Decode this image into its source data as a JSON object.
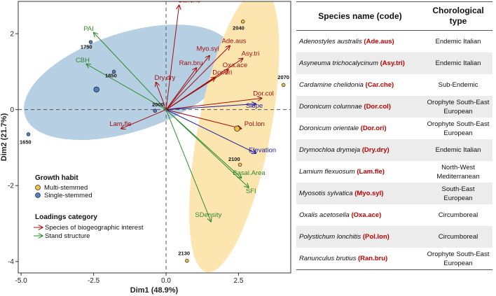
{
  "chart_data": {
    "type": "scatter",
    "xlabel": "Dim1 (48.9%)",
    "ylabel": "Dim2 (21.7%)",
    "xlim": [
      -5.1,
      4.3
    ],
    "ylim": [
      -4.3,
      2.85
    ],
    "xticks": [
      -5.0,
      -2.5,
      0.0,
      2.5
    ],
    "yticks": [
      -4,
      -2,
      0,
      2
    ],
    "points": [
      {
        "label": "1750",
        "x": -2.6,
        "y": 1.78,
        "habit": "single",
        "label_dx": -0.15,
        "label_dy": -0.17
      },
      {
        "label": "1850",
        "x": -1.8,
        "y": 1.0,
        "habit": "single",
        "label_dx": -0.1,
        "label_dy": -0.15
      },
      {
        "label": "1650",
        "x": -4.75,
        "y": -0.65,
        "habit": "single",
        "label_dx": -0.1,
        "label_dy": -0.25
      },
      {
        "label": "2000",
        "x": -0.38,
        "y": -0.03,
        "habit": "single",
        "label_dx": 0.1,
        "label_dy": 0.12
      },
      {
        "label": "2040",
        "x": 2.65,
        "y": 2.32,
        "habit": "multi",
        "label_dx": -0.15,
        "label_dy": -0.22
      },
      {
        "label": "2070",
        "x": 4.05,
        "y": 0.65,
        "habit": "multi",
        "label_dx": 0.0,
        "label_dy": 0.15
      },
      {
        "label": "2100",
        "x": 2.55,
        "y": -1.45,
        "habit": "multi",
        "label_dx": -0.2,
        "label_dy": 0.1
      },
      {
        "label": "2130",
        "x": 0.72,
        "y": -3.98,
        "habit": "multi",
        "label_dx": -0.1,
        "label_dy": 0.15
      }
    ],
    "centroids": [
      {
        "habit": "single",
        "x": -2.4,
        "y": 0.53
      },
      {
        "habit": "multi",
        "x": 2.45,
        "y": -0.5
      }
    ],
    "loadings": [
      {
        "label": "Car.che",
        "x": 0.45,
        "y": 2.75,
        "category": "species",
        "lx": 0.4,
        "ly": 2.82
      },
      {
        "label": "Myo.syl",
        "x": 1.5,
        "y": 1.42,
        "category": "species",
        "lx": 1.05,
        "ly": 1.55
      },
      {
        "label": "Ade.aus",
        "x": 2.2,
        "y": 1.68,
        "category": "species",
        "lx": 1.92,
        "ly": 1.75
      },
      {
        "label": "Asy.tri",
        "x": 2.65,
        "y": 1.35,
        "category": "species",
        "lx": 2.6,
        "ly": 1.42
      },
      {
        "label": "Ran.bru",
        "x": 1.05,
        "y": 1.1,
        "category": "species",
        "lx": 0.45,
        "ly": 1.17
      },
      {
        "label": "Oxa.ace",
        "x": 2.15,
        "y": 1.05,
        "category": "species",
        "lx": 1.95,
        "ly": 1.12
      },
      {
        "label": "Dor.ori",
        "x": 1.7,
        "y": 0.85,
        "category": "species",
        "lx": 1.6,
        "ly": 0.92
      },
      {
        "label": "Dry.dry",
        "x": -0.35,
        "y": 0.72,
        "category": "species",
        "lx": -0.4,
        "ly": 0.79
      },
      {
        "label": "Dor.col",
        "x": 3.3,
        "y": 0.3,
        "category": "species",
        "lx": 3.0,
        "ly": 0.37
      },
      {
        "label": "Pol.lon",
        "x": 2.6,
        "y": -0.5,
        "category": "species",
        "lx": 2.7,
        "ly": -0.43
      },
      {
        "label": "Lam.fle",
        "x": -1.55,
        "y": -0.5,
        "category": "species",
        "lx": -1.95,
        "ly": -0.43
      },
      {
        "label": "PAI",
        "x": -2.5,
        "y": 2.03,
        "category": "stand",
        "lx": -2.85,
        "ly": 2.08
      },
      {
        "label": "CBH",
        "x": -2.75,
        "y": 1.2,
        "category": "stand",
        "lx": -3.12,
        "ly": 1.25
      },
      {
        "label": "Slope",
        "x": 3.1,
        "y": 0.15,
        "category": "stand",
        "lx": 2.75,
        "ly": 0.05
      },
      {
        "label": "Elevation",
        "x": 3.1,
        "y": -1.15,
        "category": "stand",
        "lx": 2.85,
        "ly": -1.12
      },
      {
        "label": "Basal.Area",
        "x": 2.6,
        "y": -1.8,
        "category": "stand",
        "lx": 2.3,
        "ly": -1.72
      },
      {
        "label": "SFI",
        "x": 2.85,
        "y": -2.05,
        "category": "stand",
        "lx": 2.75,
        "ly": -2.2
      },
      {
        "label": "SDensity",
        "x": 1.55,
        "y": -2.95,
        "category": "stand",
        "lx": 1.0,
        "ly": -2.83
      }
    ],
    "legend": {
      "habit_title": "Growth habit",
      "habit_multi": "Multi-stemmed",
      "habit_single": "Single-stemmed",
      "loadings_title": "Loadings category",
      "loadings_species": "Species of biogeographic interest",
      "loadings_stand": "Stand structure",
      "placement": "bottom-left"
    },
    "colors": {
      "species_arrow": "#a01010",
      "stand_arrow": "#2e8b2e",
      "blue_arrow": "#1a1aa0",
      "single_ellipse": "#b7cfe3",
      "multi_ellipse": "#fde5b0",
      "single_point": "#4f81bd",
      "multi_point": "#f2c23c"
    }
  },
  "table": {
    "header_species": "Species name (code)",
    "header_type": "Chorological type",
    "rows": [
      {
        "name": "Adenostyles australis",
        "code": "(Ade.aus)",
        "type": "Endemic Italian"
      },
      {
        "name": "Asyneuma trichocalycinum",
        "code": "(Asy.tri)",
        "type": "Endemic Italian"
      },
      {
        "name": "Cardamine chelidonia",
        "code": "(Car.che)",
        "type": "Sub-Endemic"
      },
      {
        "name": "Doronicum columnae",
        "code": "(Dor.col)",
        "type": "Orophyte South-East European"
      },
      {
        "name": "Doronicum orientale",
        "code": "(Dor.ori)",
        "type": "Orophyte South-East European"
      },
      {
        "name": "Drymochloa drymeja",
        "code": "(Dry.dry)",
        "type": "Endemic Italian"
      },
      {
        "name": "Lamium flexuosum",
        "code": "(Lam.fle)",
        "type": "North-West Mediterranean"
      },
      {
        "name": "Myosotis sylvatica",
        "code": "(Myo.syl)",
        "type": "South-East European"
      },
      {
        "name": "Oxalis acetosella",
        "code": "(Oxa.ace)",
        "type": "Circumboreal"
      },
      {
        "name": "Polystichum lonchitis",
        "code": "(Pol.lon)",
        "type": "Circumboreal"
      },
      {
        "name": "Ranunculus brutius",
        "code": "(Ran.bru)",
        "type": "Orophyte South-East European"
      }
    ]
  }
}
